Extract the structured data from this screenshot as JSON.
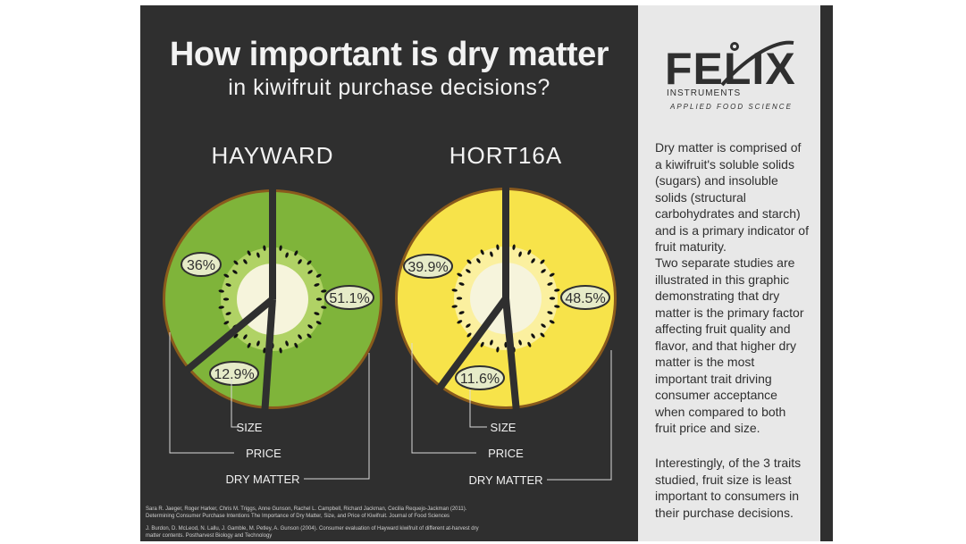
{
  "title": "How important is dry matter",
  "subtitle": "in kiwifruit purchase decisions?",
  "colors": {
    "background": "#2f2f2f",
    "side_panel": "#e8e8e8",
    "hayward_green": "#7fb43a",
    "hort16a_yellow": "#f7e34a",
    "label_fill": "#e6ebc8",
    "label_stroke": "#2f2f2f"
  },
  "logo": {
    "name": "FELIX",
    "sub": "INSTRUMENTS",
    "tagline": "APPLIED FOOD SCIENCE"
  },
  "chart_data": [
    {
      "type": "pie",
      "title": "HAYWARD",
      "categories": [
        "DRY MATTER",
        "SIZE",
        "PRICE"
      ],
      "values": [
        51.1,
        12.9,
        36
      ],
      "labels": [
        "51.1%",
        "12.9%",
        "36%"
      ]
    },
    {
      "type": "pie",
      "title": "HORT16A",
      "categories": [
        "DRY MATTER",
        "SIZE",
        "PRICE"
      ],
      "values": [
        48.5,
        11.6,
        39.9
      ],
      "labels": [
        "48.5%",
        "11.6%",
        "39.9%"
      ]
    }
  ],
  "legend_labels": [
    "SIZE",
    "PRICE",
    "DRY MATTER"
  ],
  "side_text": [
    "Dry matter is comprised of a kiwifruit's soluble solids (sugars) and insoluble solids (structural carbohydrates and starch) and is a primary indicator of fruit maturity.",
    "Two separate studies are illustrated in this graphic demonstrating that dry matter is the primary factor affecting fruit quality and flavor, and that higher dry matter is the most important trait driving consumer acceptance when compared to both fruit price and size.",
    "Interestingly, of the 3 traits studied, fruit size is least important to consumers in their purchase decisions."
  ],
  "references": [
    "Sara R. Jaeger, Roger Harker, Chris M. Triggs, Anne Gunson, Rachel L. Campbell, Richard Jackman, Cecilia Requejo-Jackman (2011). Determining Consumer Purchase Intentions The Importance of Dry Matter, Size, and Price of Kiwifruit. Journal of Food Sciences",
    "J. Burdon, D. McLeod, N. Lallu, J. Gamble, M. Petley, A. Gunson (2004). Consumer evaluation of Hayward kiwifruit of different at-harvest dry matter contents. Postharvest Biology and Technology"
  ]
}
